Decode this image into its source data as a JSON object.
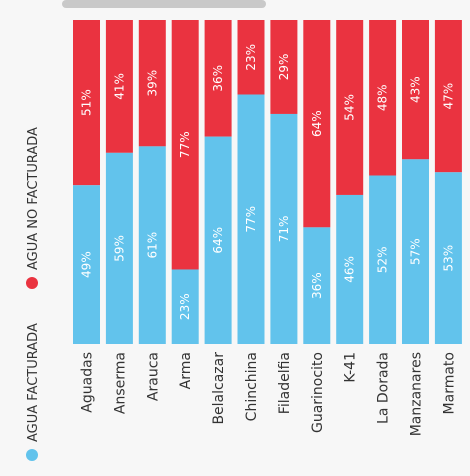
{
  "chart_data": {
    "type": "bar",
    "stacked": true,
    "percent": true,
    "categories": [
      "Aguadas",
      "Anserma",
      "Arauca",
      "Arma",
      "Belalcazar",
      "Chinchina",
      "Filadelfia",
      "Guarinocito",
      "K-41",
      "La Dorada",
      "Manzanares",
      "Marmato"
    ],
    "series": [
      {
        "name": "AGUA FACTURADA",
        "color": "#62c3ec",
        "values": [
          49,
          59,
          61,
          23,
          64,
          77,
          71,
          36,
          46,
          52,
          57,
          53
        ],
        "labels": [
          "49%",
          "59%",
          "61%",
          "23%",
          "64%",
          "77%",
          "71%",
          "36%",
          "46%",
          "52%",
          "57%",
          "53%"
        ]
      },
      {
        "name": "AGUA NO FACTURADA",
        "color": "#ea3340",
        "values": [
          51,
          41,
          39,
          77,
          36,
          23,
          29,
          64,
          54,
          48,
          43,
          47
        ],
        "labels": [
          "51%",
          "41%",
          "39%",
          "77%",
          "36%",
          "23%",
          "29%",
          "64%",
          "54%",
          "48%",
          "43%",
          "47%"
        ]
      }
    ],
    "ylim": [
      0,
      100
    ],
    "legend_position": "left, rotated vertically",
    "grid": false
  }
}
